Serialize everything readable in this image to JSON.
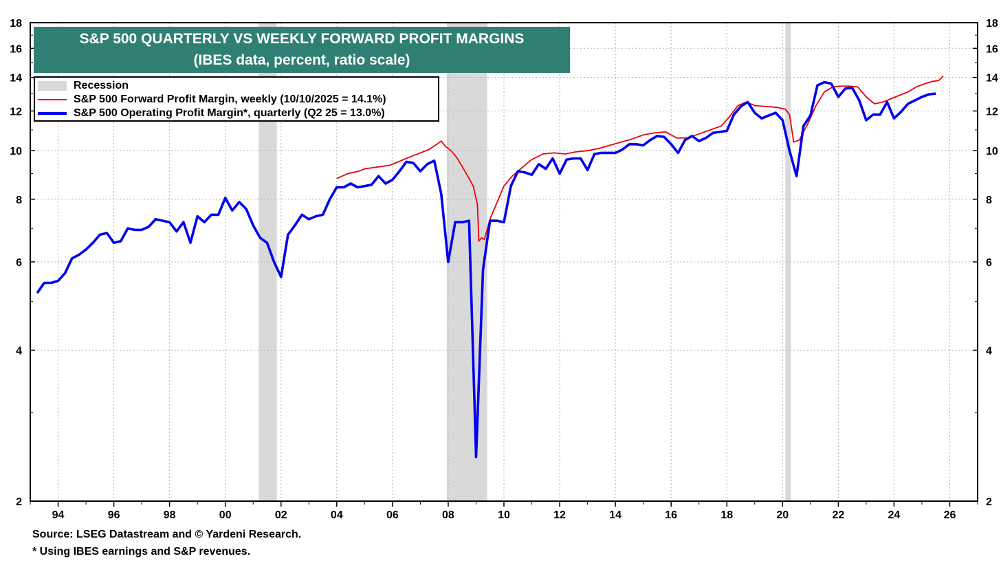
{
  "chart_data": {
    "type": "line",
    "title": "S&P 500 QUARTERLY VS WEEKLY FORWARD PROFIT MARGINS",
    "subtitle": "(IBES data, percent, ratio scale)",
    "y_scale": "log",
    "ylim": [
      2,
      18
    ],
    "y_ticks": [
      2,
      4,
      6,
      8,
      10,
      12,
      14,
      16,
      18
    ],
    "x_ticks": [
      "94",
      "96",
      "98",
      "00",
      "02",
      "04",
      "06",
      "08",
      "10",
      "12",
      "14",
      "16",
      "18",
      "20",
      "22",
      "24",
      "26"
    ],
    "x_tick_years": [
      1994,
      1996,
      1998,
      2000,
      2002,
      2004,
      2006,
      2008,
      2010,
      2012,
      2014,
      2016,
      2018,
      2020,
      2022,
      2024,
      2026
    ],
    "xlim": [
      1993.0,
      2027.0
    ],
    "grid": true,
    "legend_placement": "top-left",
    "recessions": [
      {
        "start": 2001.2,
        "end": 2001.85
      },
      {
        "start": 2007.95,
        "end": 2009.4
      },
      {
        "start": 2020.1,
        "end": 2020.3
      }
    ],
    "series": [
      {
        "name": "S&P 500 Forward Profit Margin, weekly (10/10/2025 = 14.1%)",
        "color": "#e8000b",
        "points": [
          [
            2004.0,
            8.8
          ],
          [
            2004.2,
            8.9
          ],
          [
            2004.4,
            9.0
          ],
          [
            2004.6,
            9.05
          ],
          [
            2004.8,
            9.1
          ],
          [
            2005.0,
            9.2
          ],
          [
            2005.3,
            9.25
          ],
          [
            2005.6,
            9.3
          ],
          [
            2005.9,
            9.35
          ],
          [
            2006.2,
            9.5
          ],
          [
            2006.5,
            9.65
          ],
          [
            2006.8,
            9.8
          ],
          [
            2007.0,
            9.9
          ],
          [
            2007.3,
            10.05
          ],
          [
            2007.6,
            10.3
          ],
          [
            2007.75,
            10.45
          ],
          [
            2007.9,
            10.2
          ],
          [
            2008.1,
            10.0
          ],
          [
            2008.3,
            9.7
          ],
          [
            2008.5,
            9.3
          ],
          [
            2008.7,
            8.9
          ],
          [
            2008.9,
            8.5
          ],
          [
            2009.05,
            7.8
          ],
          [
            2009.1,
            6.6
          ],
          [
            2009.2,
            6.7
          ],
          [
            2009.3,
            6.65
          ],
          [
            2009.5,
            7.3
          ],
          [
            2009.8,
            8.0
          ],
          [
            2010.0,
            8.5
          ],
          [
            2010.3,
            8.9
          ],
          [
            2010.6,
            9.2
          ],
          [
            2011.0,
            9.6
          ],
          [
            2011.4,
            9.85
          ],
          [
            2011.8,
            9.9
          ],
          [
            2012.2,
            9.85
          ],
          [
            2012.6,
            9.95
          ],
          [
            2013.0,
            10.0
          ],
          [
            2013.4,
            10.1
          ],
          [
            2013.8,
            10.25
          ],
          [
            2014.2,
            10.4
          ],
          [
            2014.6,
            10.55
          ],
          [
            2015.0,
            10.75
          ],
          [
            2015.4,
            10.85
          ],
          [
            2015.8,
            10.9
          ],
          [
            2016.2,
            10.6
          ],
          [
            2016.6,
            10.6
          ],
          [
            2017.0,
            10.8
          ],
          [
            2017.4,
            11.0
          ],
          [
            2017.8,
            11.2
          ],
          [
            2018.1,
            11.7
          ],
          [
            2018.4,
            12.3
          ],
          [
            2018.7,
            12.5
          ],
          [
            2019.0,
            12.3
          ],
          [
            2019.4,
            12.25
          ],
          [
            2019.8,
            12.2
          ],
          [
            2020.1,
            12.1
          ],
          [
            2020.25,
            11.8
          ],
          [
            2020.4,
            10.4
          ],
          [
            2020.6,
            10.5
          ],
          [
            2020.9,
            11.3
          ],
          [
            2021.2,
            12.3
          ],
          [
            2021.5,
            13.1
          ],
          [
            2021.8,
            13.4
          ],
          [
            2022.1,
            13.45
          ],
          [
            2022.4,
            13.45
          ],
          [
            2022.7,
            13.4
          ],
          [
            2023.0,
            12.8
          ],
          [
            2023.3,
            12.4
          ],
          [
            2023.6,
            12.5
          ],
          [
            2023.9,
            12.7
          ],
          [
            2024.2,
            12.9
          ],
          [
            2024.5,
            13.1
          ],
          [
            2024.8,
            13.4
          ],
          [
            2025.1,
            13.6
          ],
          [
            2025.4,
            13.75
          ],
          [
            2025.6,
            13.8
          ],
          [
            2025.77,
            14.1
          ]
        ]
      },
      {
        "name": "S&P 500 Operating Profit Margin*, quarterly (Q2 25 = 13.0%)",
        "color": "#0000ee",
        "points": [
          [
            1993.25,
            5.2
          ],
          [
            1993.5,
            5.45
          ],
          [
            1993.75,
            5.45
          ],
          [
            1994.0,
            5.5
          ],
          [
            1994.25,
            5.7
          ],
          [
            1994.5,
            6.1
          ],
          [
            1994.75,
            6.2
          ],
          [
            1995.0,
            6.35
          ],
          [
            1995.25,
            6.55
          ],
          [
            1995.5,
            6.8
          ],
          [
            1995.75,
            6.85
          ],
          [
            1996.0,
            6.55
          ],
          [
            1996.25,
            6.6
          ],
          [
            1996.5,
            7.0
          ],
          [
            1996.75,
            6.95
          ],
          [
            1997.0,
            6.95
          ],
          [
            1997.25,
            7.05
          ],
          [
            1997.5,
            7.3
          ],
          [
            1997.75,
            7.25
          ],
          [
            1998.0,
            7.2
          ],
          [
            1998.25,
            6.9
          ],
          [
            1998.5,
            7.2
          ],
          [
            1998.75,
            6.55
          ],
          [
            1999.0,
            7.4
          ],
          [
            1999.25,
            7.2
          ],
          [
            1999.5,
            7.45
          ],
          [
            1999.75,
            7.45
          ],
          [
            2000.0,
            8.05
          ],
          [
            2000.25,
            7.6
          ],
          [
            2000.5,
            7.9
          ],
          [
            2000.75,
            7.65
          ],
          [
            2001.0,
            7.1
          ],
          [
            2001.25,
            6.7
          ],
          [
            2001.5,
            6.55
          ],
          [
            2001.75,
            6.0
          ],
          [
            2002.0,
            5.6
          ],
          [
            2002.25,
            6.8
          ],
          [
            2002.5,
            7.1
          ],
          [
            2002.75,
            7.45
          ],
          [
            2003.0,
            7.3
          ],
          [
            2003.25,
            7.4
          ],
          [
            2003.5,
            7.45
          ],
          [
            2003.75,
            8.0
          ],
          [
            2004.0,
            8.45
          ],
          [
            2004.25,
            8.45
          ],
          [
            2004.5,
            8.6
          ],
          [
            2004.75,
            8.45
          ],
          [
            2005.0,
            8.5
          ],
          [
            2005.25,
            8.55
          ],
          [
            2005.5,
            8.9
          ],
          [
            2005.75,
            8.6
          ],
          [
            2006.0,
            8.75
          ],
          [
            2006.25,
            9.1
          ],
          [
            2006.5,
            9.5
          ],
          [
            2006.75,
            9.45
          ],
          [
            2007.0,
            9.1
          ],
          [
            2007.25,
            9.4
          ],
          [
            2007.5,
            9.55
          ],
          [
            2007.75,
            8.2
          ],
          [
            2008.0,
            6.0
          ],
          [
            2008.25,
            7.2
          ],
          [
            2008.5,
            7.2
          ],
          [
            2008.75,
            7.25
          ],
          [
            2009.0,
            2.45
          ],
          [
            2009.25,
            5.8
          ],
          [
            2009.5,
            7.25
          ],
          [
            2009.75,
            7.25
          ],
          [
            2010.0,
            7.2
          ],
          [
            2010.25,
            8.5
          ],
          [
            2010.5,
            9.1
          ],
          [
            2010.75,
            9.05
          ],
          [
            2011.0,
            8.95
          ],
          [
            2011.25,
            9.4
          ],
          [
            2011.5,
            9.2
          ],
          [
            2011.75,
            9.65
          ],
          [
            2012.0,
            9.0
          ],
          [
            2012.25,
            9.6
          ],
          [
            2012.5,
            9.65
          ],
          [
            2012.75,
            9.65
          ],
          [
            2013.0,
            9.15
          ],
          [
            2013.25,
            9.85
          ],
          [
            2013.5,
            9.9
          ],
          [
            2013.75,
            9.9
          ],
          [
            2014.0,
            9.9
          ],
          [
            2014.25,
            10.05
          ],
          [
            2014.5,
            10.3
          ],
          [
            2014.75,
            10.3
          ],
          [
            2015.0,
            10.25
          ],
          [
            2015.25,
            10.5
          ],
          [
            2015.5,
            10.7
          ],
          [
            2015.75,
            10.65
          ],
          [
            2016.0,
            10.3
          ],
          [
            2016.25,
            9.9
          ],
          [
            2016.5,
            10.5
          ],
          [
            2016.75,
            10.7
          ],
          [
            2017.0,
            10.45
          ],
          [
            2017.25,
            10.6
          ],
          [
            2017.5,
            10.85
          ],
          [
            2017.75,
            10.9
          ],
          [
            2018.0,
            10.95
          ],
          [
            2018.25,
            11.8
          ],
          [
            2018.5,
            12.25
          ],
          [
            2018.75,
            12.5
          ],
          [
            2019.0,
            11.9
          ],
          [
            2019.25,
            11.6
          ],
          [
            2019.5,
            11.75
          ],
          [
            2019.75,
            11.9
          ],
          [
            2020.0,
            11.5
          ],
          [
            2020.25,
            10.0
          ],
          [
            2020.5,
            8.9
          ],
          [
            2020.75,
            11.2
          ],
          [
            2021.0,
            11.75
          ],
          [
            2021.25,
            13.5
          ],
          [
            2021.5,
            13.7
          ],
          [
            2021.75,
            13.6
          ],
          [
            2022.0,
            12.8
          ],
          [
            2022.25,
            13.3
          ],
          [
            2022.5,
            13.35
          ],
          [
            2022.75,
            12.6
          ],
          [
            2023.0,
            11.5
          ],
          [
            2023.25,
            11.8
          ],
          [
            2023.5,
            11.8
          ],
          [
            2023.75,
            12.5
          ],
          [
            2024.0,
            11.6
          ],
          [
            2024.25,
            11.95
          ],
          [
            2024.5,
            12.4
          ],
          [
            2024.75,
            12.6
          ],
          [
            2025.0,
            12.8
          ],
          [
            2025.25,
            12.95
          ],
          [
            2025.5,
            13.0
          ]
        ]
      }
    ],
    "legend": {
      "recession_label": "Recession",
      "forward_label": "S&P 500 Forward Profit Margin, weekly (10/10/2025 = 14.1%)",
      "operating_label": "S&P 500 Operating Profit Margin*, quarterly (Q2 25 = 13.0%)"
    },
    "colors": {
      "title_bg": "#2f7f72",
      "recession": "#d9d9d9",
      "forward": "#e8000b",
      "operating": "#0000ee"
    }
  },
  "footer": {
    "source": "Source: LSEG Datastream and © Yardeni Research.",
    "note": "* Using IBES earnings and S&P revenues."
  }
}
